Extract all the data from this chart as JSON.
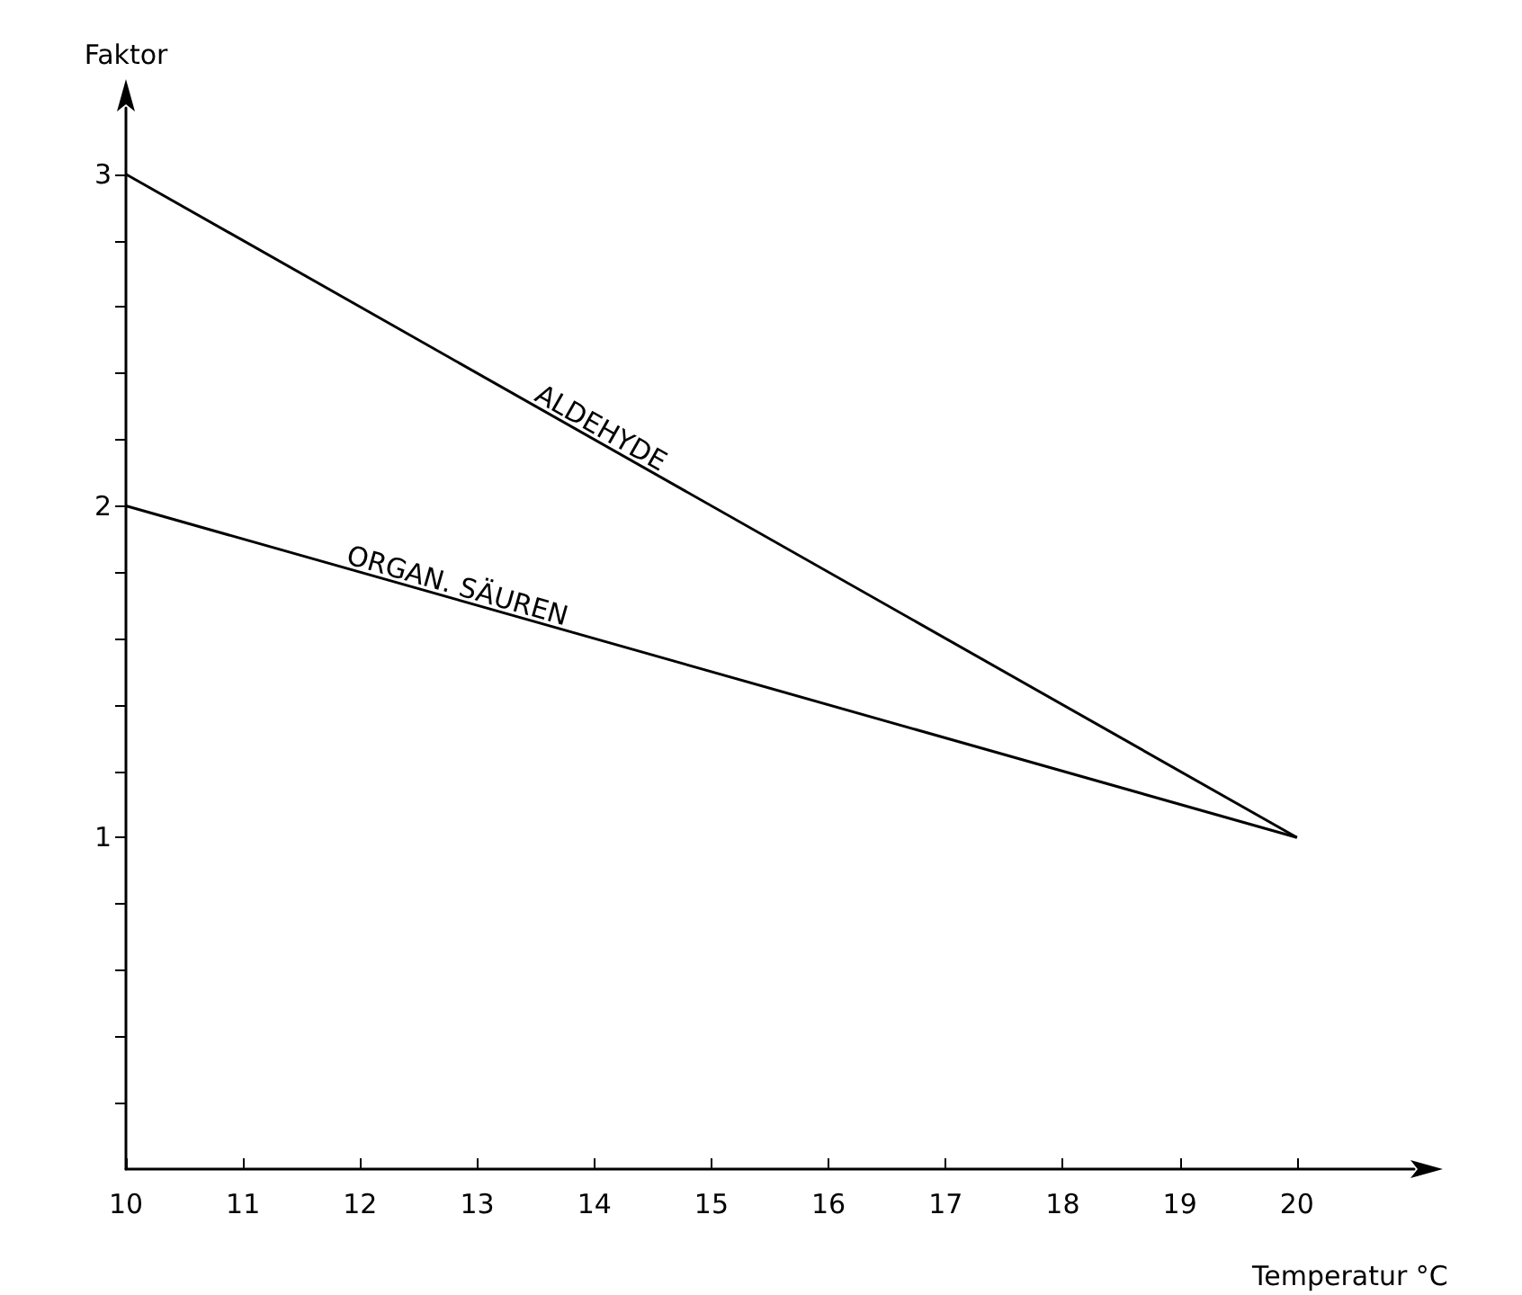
{
  "chart_data": {
    "type": "line",
    "xlabel": "Temperatur °C",
    "ylabel": "Faktor",
    "x": [
      10,
      20
    ],
    "series": [
      {
        "name": "ALDEHYDE",
        "color": "#000000",
        "values": [
          3,
          1
        ]
      },
      {
        "name": "ORGAN. SÄUREN",
        "color": "#000000",
        "values": [
          2,
          1
        ]
      }
    ],
    "xlim": [
      10,
      21
    ],
    "xticks": [
      10,
      11,
      12,
      13,
      14,
      15,
      16,
      17,
      18,
      19,
      20
    ],
    "ylim": [
      0,
      3.2
    ],
    "yticks": [
      {
        "value": 0.2,
        "label": null
      },
      {
        "value": 0.4,
        "label": null
      },
      {
        "value": 0.6,
        "label": null
      },
      {
        "value": 0.8,
        "label": null
      },
      1,
      {
        "value": 1.2,
        "label": null
      },
      {
        "value": 1.4,
        "label": null
      },
      {
        "value": 1.6,
        "label": null
      },
      {
        "value": 1.8,
        "label": null
      },
      2,
      {
        "value": 2.2,
        "label": null
      },
      {
        "value": 2.4,
        "label": null
      },
      {
        "value": 2.6,
        "label": null
      },
      {
        "value": 2.8,
        "label": null
      },
      3
    ],
    "grid": false,
    "legend": false,
    "marker": "none",
    "line_style": "solid"
  }
}
